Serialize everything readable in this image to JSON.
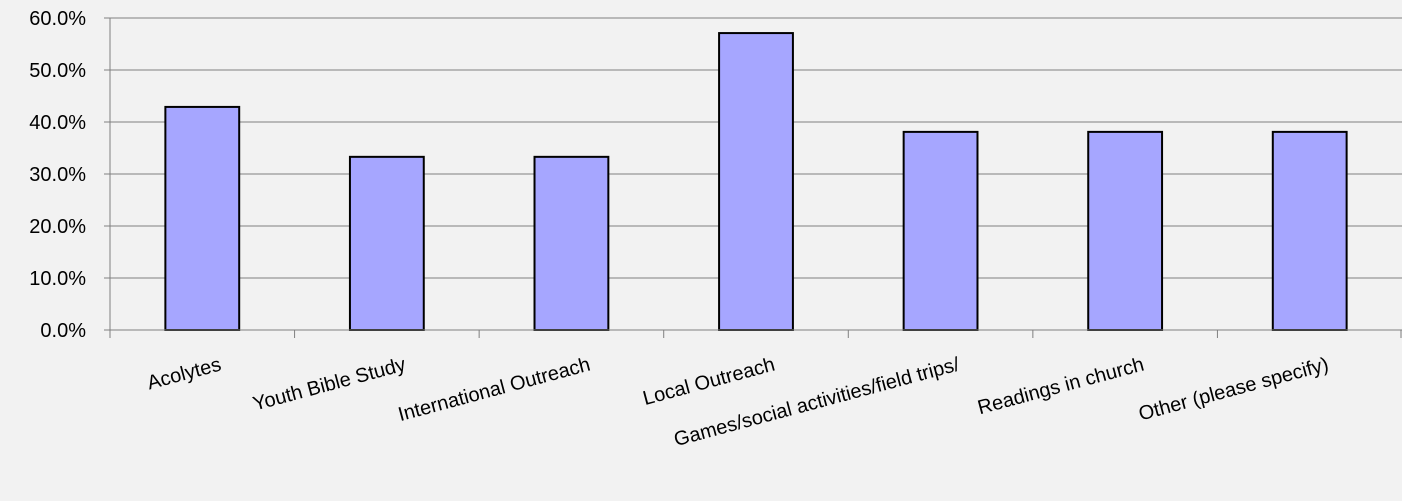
{
  "chart_data": {
    "type": "bar",
    "title": "",
    "xlabel": "",
    "ylabel": "",
    "categories": [
      "Acolytes",
      "Youth Bible Study",
      "International Outreach",
      "Local Outreach",
      "Games/social activities/field trips/",
      "Readings in church",
      "Other (please specify)"
    ],
    "values": [
      42.9,
      33.3,
      33.3,
      57.1,
      38.1,
      38.1,
      38.1
    ],
    "ylim": [
      0,
      60
    ],
    "yticks": [
      "0.0%",
      "10.0%",
      "20.0%",
      "30.0%",
      "40.0%",
      "50.0%",
      "60.0%"
    ],
    "grid": true,
    "legend": "none",
    "bar_color": "#a6a6ff",
    "bar_edge_color": "#000000",
    "gridline_color": "#808080",
    "background_color": "#f2f2f2"
  }
}
